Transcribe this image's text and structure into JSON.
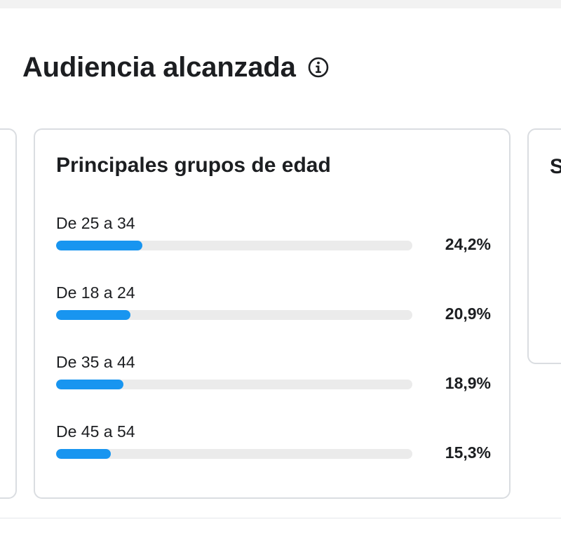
{
  "section": {
    "title": "Audiencia alcanzada"
  },
  "age_card": {
    "title": "Principales grupos de edad",
    "groups": [
      {
        "label": "De 25 a 34",
        "percent_text": "24,2%",
        "value": 24.2
      },
      {
        "label": "De 18 a 24",
        "percent_text": "20,9%",
        "value": 20.9
      },
      {
        "label": "De 35 a 44",
        "percent_text": "18,9%",
        "value": 18.9
      },
      {
        "label": "De 45 a 54",
        "percent_text": "15,3%",
        "value": 15.3
      }
    ]
  },
  "next_card": {
    "title_partial": "S"
  },
  "colors": {
    "bar_fill": "#1895f0",
    "bar_track": "#ebebeb",
    "card_border": "#dadde1",
    "text": "#1c1e21"
  },
  "icons": {
    "info": "info-icon"
  }
}
